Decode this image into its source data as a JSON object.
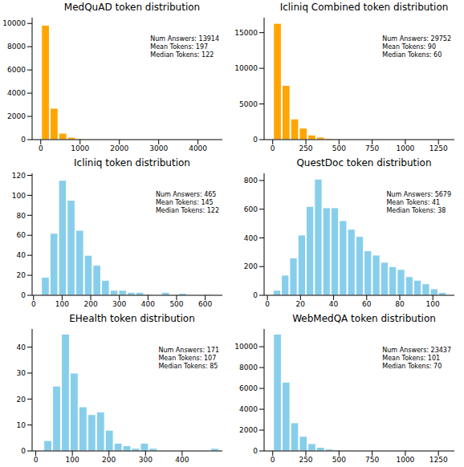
{
  "chart_data": [
    {
      "type": "histogram",
      "title": "MedQuAD token distribution",
      "annotations": [
        "Num Answers: 13914",
        "Mean Tokens: 197",
        "Median Tokens: 122"
      ],
      "color": "#FFA500",
      "bins": [
        0,
        220,
        440,
        660,
        880,
        1100,
        1320,
        1540,
        1760,
        1980,
        2200,
        2420,
        2640,
        2860,
        3080,
        3300,
        3520,
        3740,
        3960,
        4180,
        4400
      ],
      "counts": [
        9850,
        2700,
        550,
        200,
        80,
        30,
        15,
        8,
        5,
        3,
        2,
        1,
        1,
        0,
        0,
        0,
        0,
        0,
        0,
        1
      ],
      "xlim": [
        -220,
        4620
      ],
      "xticks": [
        0,
        1000,
        2000,
        3000,
        4000
      ],
      "ylim": [
        0,
        10500
      ],
      "yticks": [
        0,
        2000,
        4000,
        6000,
        8000,
        10000
      ]
    },
    {
      "type": "histogram",
      "title": "Icliniq Combined token distribution",
      "annotations": [
        "Num Answers: 29752",
        "Mean Tokens: 90",
        "Median Tokens: 60"
      ],
      "color": "#FFA500",
      "bins": [
        0,
        65,
        130,
        195,
        260,
        325,
        390,
        455,
        520,
        585,
        650,
        715,
        780,
        845,
        910,
        975,
        1040,
        1105,
        1170,
        1235,
        1300
      ],
      "counts": [
        16300,
        7600,
        2900,
        1600,
        650,
        350,
        170,
        80,
        40,
        20,
        10,
        5,
        5,
        3,
        2,
        1,
        1,
        0,
        0,
        1
      ],
      "xlim": [
        -65,
        1370
      ],
      "xticks": [
        0,
        250,
        500,
        750,
        1000,
        1250
      ],
      "ylim": [
        0,
        17100
      ],
      "yticks": [
        0,
        5000,
        10000,
        15000
      ]
    },
    {
      "type": "histogram",
      "title": "Icliniq token distribution",
      "annotations": [
        "Num Answers: 465",
        "Mean Tokens: 145",
        "Median Tokens: 122"
      ],
      "color": "#87CEEB",
      "bins": [
        25,
        55,
        85,
        115,
        145,
        175,
        205,
        235,
        265,
        295,
        325,
        355,
        385,
        415,
        445,
        475,
        505,
        535,
        565,
        595,
        625
      ],
      "counts": [
        18,
        62,
        115,
        95,
        65,
        40,
        30,
        15,
        5,
        5,
        3,
        3,
        1,
        0,
        3,
        0,
        2,
        0,
        0,
        1
      ],
      "xlim": [
        -5,
        660
      ],
      "xticks": [
        0,
        100,
        200,
        300,
        400,
        500,
        600
      ],
      "ylim": [
        0,
        122
      ],
      "yticks": [
        0,
        20,
        40,
        60,
        80,
        100,
        120
      ]
    },
    {
      "type": "histogram",
      "title": "QuestDoc token distribution",
      "annotations": [
        "Num Answers: 5679",
        "Mean Tokens: 41",
        "Median Tokens: 38"
      ],
      "color": "#87CEEB",
      "bins": [
        3,
        8,
        13,
        18,
        23,
        28,
        33,
        38,
        43,
        48,
        53,
        58,
        63,
        68,
        73,
        78,
        83,
        88,
        93,
        98,
        103,
        108
      ],
      "counts": [
        35,
        140,
        260,
        420,
        620,
        810,
        610,
        610,
        520,
        460,
        410,
        310,
        280,
        230,
        200,
        180,
        130,
        105,
        80,
        45,
        20
      ],
      "xlim": [
        -2,
        113
      ],
      "xticks": [
        0,
        20,
        40,
        60,
        80,
        100
      ],
      "ylim": [
        0,
        850
      ],
      "yticks": [
        0,
        200,
        400,
        600,
        800
      ]
    },
    {
      "type": "histogram",
      "title": "EHealth token distribution",
      "annotations": [
        "Num Answers: 171",
        "Mean Tokens: 107",
        "Median Tokens: 85"
      ],
      "color": "#87CEEB",
      "bins": [
        20,
        44,
        68,
        92,
        116,
        140,
        164,
        188,
        212,
        236,
        260,
        284,
        308,
        332,
        356,
        380,
        404,
        428,
        452,
        476,
        500
      ],
      "counts": [
        4,
        25,
        45,
        30,
        17,
        14,
        15,
        8,
        3,
        2,
        1,
        3,
        1,
        0,
        0,
        0,
        0,
        0,
        0,
        1
      ],
      "xlim": [
        -10,
        510
      ],
      "xticks": [
        0,
        100,
        200,
        300,
        400
      ],
      "ylim": [
        0,
        47
      ],
      "yticks": [
        0,
        10,
        20,
        30,
        40
      ]
    },
    {
      "type": "histogram",
      "title": "WebMedQA token distribution",
      "annotations": [
        "Num Answers: 23437",
        "Mean Tokens: 101",
        "Median Tokens: 70"
      ],
      "color": "#87CEEB",
      "bins": [
        0,
        65,
        130,
        195,
        260,
        325,
        390,
        455,
        520,
        585,
        650,
        715,
        780,
        845,
        910,
        975,
        1040,
        1105,
        1170,
        1235,
        1300
      ],
      "counts": [
        11200,
        6600,
        2700,
        1400,
        700,
        350,
        180,
        90,
        50,
        30,
        15,
        10,
        5,
        3,
        2,
        1,
        1,
        0,
        1,
        1
      ],
      "xlim": [
        -65,
        1370
      ],
      "xticks": [
        0,
        250,
        500,
        750,
        1000,
        1250
      ],
      "ylim": [
        0,
        11700
      ],
      "yticks": [
        0,
        2000,
        4000,
        6000,
        8000,
        10000
      ]
    }
  ]
}
